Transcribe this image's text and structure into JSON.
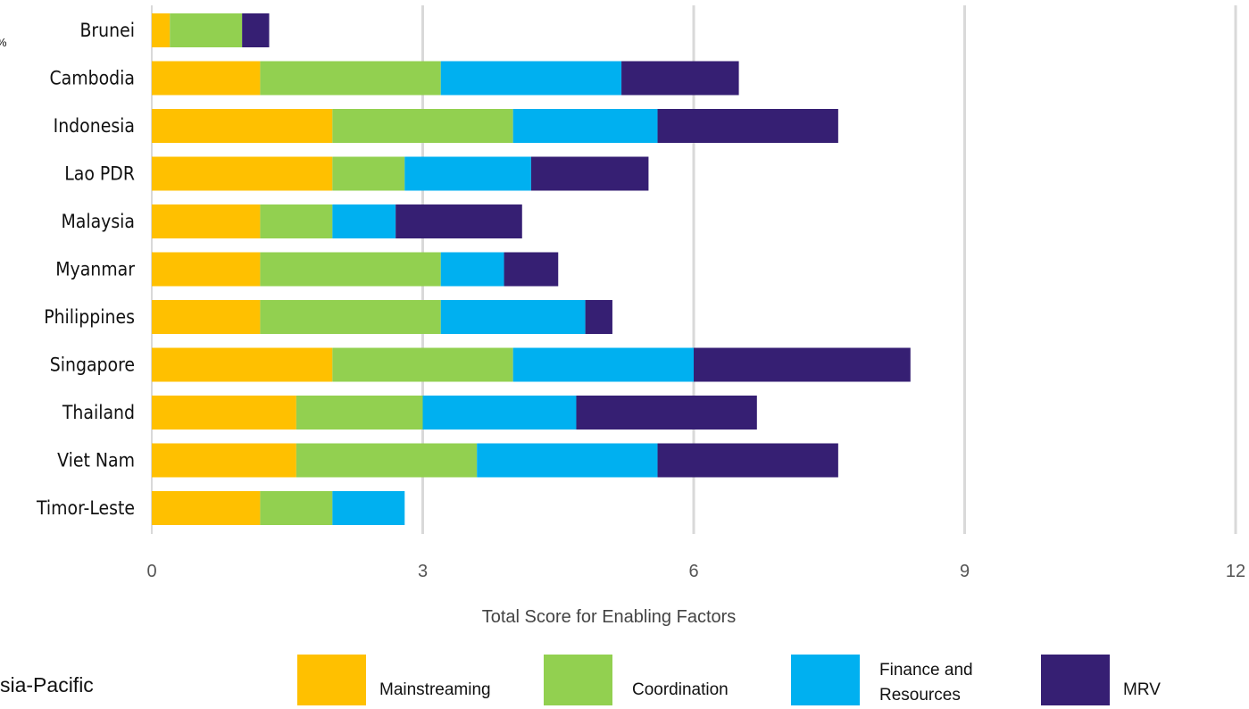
{
  "page": {
    "edge_fragment_top": "%",
    "edge_fragment_bottom": "sia-Pacific"
  },
  "chart_data": {
    "type": "bar",
    "orientation": "horizontal",
    "stacked": true,
    "categories": [
      "Brunei",
      "Cambodia",
      "Indonesia",
      "Lao PDR",
      "Malaysia",
      "Myanmar",
      "Philippines",
      "Singapore",
      "Thailand",
      "Viet Nam",
      "Timor-Leste"
    ],
    "series": [
      {
        "name": "Mainstreaming",
        "color": "#FFC000",
        "values": [
          0.2,
          1.2,
          2.0,
          2.0,
          1.2,
          1.2,
          1.2,
          2.0,
          1.6,
          1.6,
          1.2
        ]
      },
      {
        "name": "Coordination",
        "color": "#92D050",
        "values": [
          0.8,
          2.0,
          2.0,
          0.8,
          0.8,
          2.0,
          2.0,
          2.0,
          1.4,
          2.0,
          0.8
        ]
      },
      {
        "name": "Finance and Resources",
        "color": "#00B0F0",
        "values": [
          0.0,
          2.0,
          1.6,
          1.4,
          0.7,
          0.7,
          1.6,
          2.0,
          1.7,
          2.0,
          0.8
        ]
      },
      {
        "name": "MRV",
        "color": "#361F73",
        "values": [
          0.3,
          1.3,
          2.0,
          1.3,
          1.4,
          0.6,
          0.3,
          2.4,
          2.0,
          2.0,
          0.0
        ]
      }
    ],
    "xlabel": "Total Score for Enabling Factors",
    "ylabel": "",
    "xlim": [
      0,
      12
    ],
    "xticks": [
      "0",
      "3",
      "6",
      "9",
      "12"
    ],
    "grid": "vertical",
    "legend_position": "bottom"
  }
}
